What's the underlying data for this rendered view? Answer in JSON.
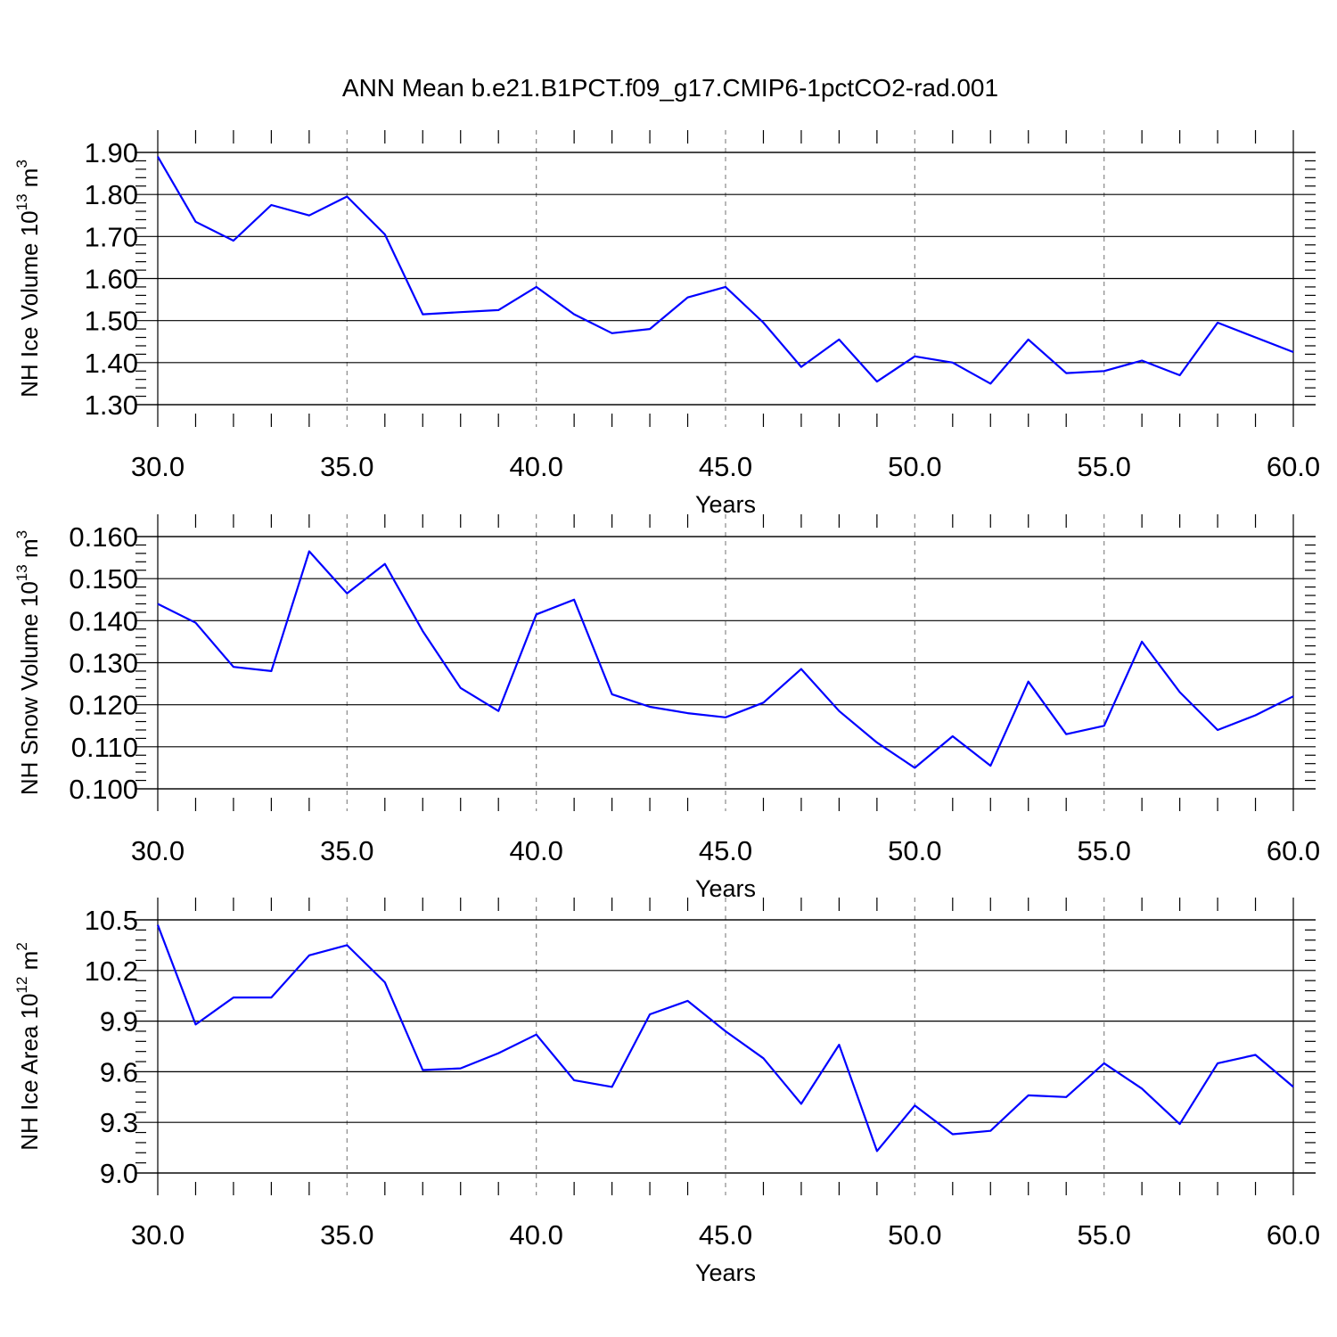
{
  "title": "ANN Mean b.e21.B1PCT.f09_g17.CMIP6-1pctCO2-rad.001",
  "colors": {
    "line": "#0000ff",
    "axis": "#000000",
    "grid": "#888888"
  },
  "chart_data": [
    {
      "type": "line",
      "ylabel": {
        "main": "NH Ice Volume 10",
        "exp": "13",
        "unit": " m",
        "unit_exp": "3"
      },
      "xlabel": "Years",
      "xlim": [
        30,
        60
      ],
      "ylim": [
        1.3,
        1.9
      ],
      "yticks": [
        1.3,
        1.4,
        1.5,
        1.6,
        1.7,
        1.8,
        1.9
      ],
      "ytick_labels": [
        "1.30",
        "1.40",
        "1.50",
        "1.60",
        "1.70",
        "1.80",
        "1.90"
      ],
      "xticks": [
        30,
        35,
        40,
        45,
        50,
        55,
        60
      ],
      "xtick_labels": [
        "30.0",
        "35.0",
        "40.0",
        "45.0",
        "50.0",
        "55.0",
        "60.0"
      ],
      "grid": "vertical dashed at major x ticks",
      "series": [
        {
          "x": [
            30,
            31,
            32,
            33,
            34,
            35,
            36,
            37,
            38,
            39,
            40,
            41,
            42,
            43,
            44,
            45,
            46,
            47,
            48,
            49,
            50,
            51,
            52,
            53,
            54,
            55,
            56,
            57,
            58,
            59,
            60
          ],
          "values": [
            1.89,
            1.735,
            1.69,
            1.775,
            1.75,
            1.795,
            1.705,
            1.515,
            1.52,
            1.525,
            1.58,
            1.515,
            1.47,
            1.48,
            1.555,
            1.58,
            1.495,
            1.39,
            1.455,
            1.355,
            1.415,
            1.4,
            1.35,
            1.455,
            1.375,
            1.38,
            1.405,
            1.37,
            1.495,
            1.46,
            1.425
          ]
        }
      ]
    },
    {
      "type": "line",
      "ylabel": {
        "main": "NH Snow Volume 10",
        "exp": "13",
        "unit": " m",
        "unit_exp": "3"
      },
      "xlabel": "Years",
      "xlim": [
        30,
        60
      ],
      "ylim": [
        0.1,
        0.16
      ],
      "yticks": [
        0.1,
        0.11,
        0.12,
        0.13,
        0.14,
        0.15,
        0.16
      ],
      "ytick_labels": [
        "0.100",
        "0.110",
        "0.120",
        "0.130",
        "0.140",
        "0.150",
        "0.160"
      ],
      "xticks": [
        30,
        35,
        40,
        45,
        50,
        55,
        60
      ],
      "xtick_labels": [
        "30.0",
        "35.0",
        "40.0",
        "45.0",
        "50.0",
        "55.0",
        "60.0"
      ],
      "grid": "vertical dashed at major x ticks",
      "series": [
        {
          "x": [
            30,
            31,
            32,
            33,
            34,
            35,
            36,
            37,
            38,
            39,
            40,
            41,
            42,
            43,
            44,
            45,
            46,
            47,
            48,
            49,
            50,
            51,
            52,
            53,
            54,
            55,
            56,
            57,
            58,
            59,
            60
          ],
          "values": [
            0.144,
            0.1395,
            0.129,
            0.128,
            0.1565,
            0.1465,
            0.1535,
            0.1375,
            0.124,
            0.1185,
            0.1415,
            0.145,
            0.1225,
            0.1195,
            0.118,
            0.117,
            0.1205,
            0.1285,
            0.1185,
            0.111,
            0.105,
            0.1125,
            0.1055,
            0.1255,
            0.113,
            0.115,
            0.135,
            0.123,
            0.114,
            0.1175,
            0.122
          ]
        }
      ]
    },
    {
      "type": "line",
      "ylabel": {
        "main": "NH Ice Area 10",
        "exp": "12",
        "unit": " m",
        "unit_exp": "2"
      },
      "xlabel": "Years",
      "xlim": [
        30,
        60
      ],
      "ylim": [
        9.0,
        10.5
      ],
      "yticks": [
        9.0,
        9.3,
        9.6,
        9.9,
        10.2,
        10.5
      ],
      "ytick_labels": [
        "9.0",
        "9.3",
        "9.6",
        "9.9",
        "10.2",
        "10.5"
      ],
      "xticks": [
        30,
        35,
        40,
        45,
        50,
        55,
        60
      ],
      "xtick_labels": [
        "30.0",
        "35.0",
        "40.0",
        "45.0",
        "50.0",
        "55.0",
        "60.0"
      ],
      "grid": "vertical dashed at major x ticks",
      "series": [
        {
          "x": [
            30,
            31,
            32,
            33,
            34,
            35,
            36,
            37,
            38,
            39,
            40,
            41,
            42,
            43,
            44,
            45,
            46,
            47,
            48,
            49,
            50,
            51,
            52,
            53,
            54,
            55,
            56,
            57,
            58,
            59,
            60
          ],
          "values": [
            10.47,
            9.88,
            10.04,
            10.04,
            10.29,
            10.35,
            10.13,
            9.61,
            9.62,
            9.71,
            9.82,
            9.55,
            9.51,
            9.94,
            10.02,
            9.84,
            9.68,
            9.41,
            9.76,
            9.13,
            9.4,
            9.23,
            9.25,
            9.46,
            9.45,
            9.65,
            9.5,
            9.29,
            9.65,
            9.7,
            9.51
          ]
        }
      ]
    }
  ]
}
